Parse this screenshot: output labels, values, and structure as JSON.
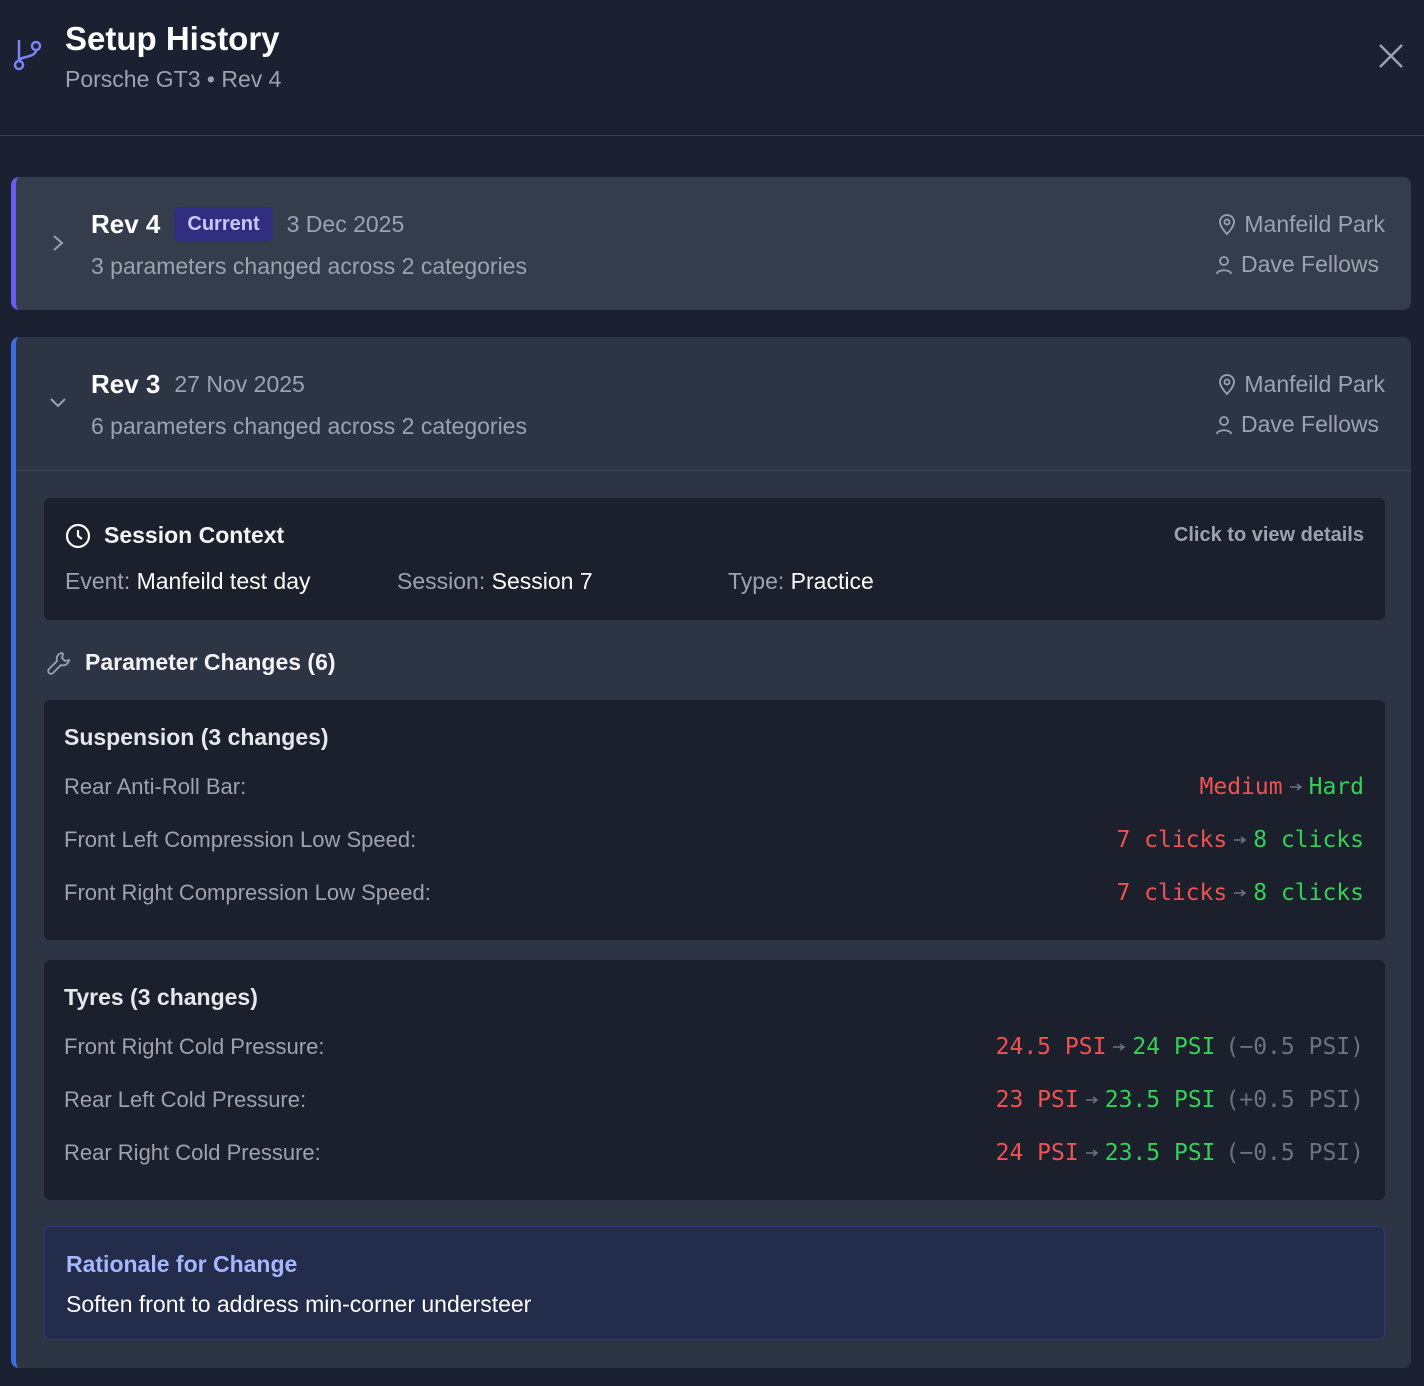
{
  "header": {
    "title": "Setup History",
    "subtitle": "Porsche GT3 • Rev 4"
  },
  "revisions": [
    {
      "rev": "Rev 4",
      "badge": "Current",
      "date": "3 Dec 2025",
      "summary": "3 parameters changed across 2 categories",
      "location": "Manfeild Park",
      "author": "Dave Fellows"
    },
    {
      "rev": "Rev 3",
      "date": "27 Nov 2025",
      "summary": "6 parameters changed across 2 categories",
      "location": "Manfeild Park",
      "author": "Dave Fellows",
      "session": {
        "title": "Session Context",
        "link": "Click to view details",
        "fields": [
          {
            "label": "Event:",
            "value": "Manfeild test day"
          },
          {
            "label": "Session:",
            "value": "Session 7"
          },
          {
            "label": "Type:",
            "value": "Practice"
          }
        ]
      },
      "changes_title": "Parameter Changes (6)",
      "groups": [
        {
          "title": "Suspension (3 changes)",
          "items": [
            {
              "name": "Rear Anti-Roll Bar:",
              "from": "Medium",
              "to": "Hard"
            },
            {
              "name": "Front Left Compression Low Speed:",
              "from": "7 clicks",
              "to": "8 clicks"
            },
            {
              "name": "Front Right Compression Low Speed:",
              "from": "7 clicks",
              "to": "8 clicks"
            }
          ]
        },
        {
          "title": "Tyres (3 changes)",
          "items": [
            {
              "name": "Front Right Cold Pressure:",
              "from": "24.5 PSI",
              "to": "24 PSI",
              "delta": "(−0.5 PSI)"
            },
            {
              "name": "Rear Left Cold Pressure:",
              "from": "23 PSI",
              "to": "23.5 PSI",
              "delta": "(+0.5 PSI)"
            },
            {
              "name": "Rear Right Cold Pressure:",
              "from": "24 PSI",
              "to": "23.5 PSI",
              "delta": "(−0.5 PSI)"
            }
          ]
        }
      ],
      "rationale": {
        "title": "Rationale for Change",
        "text": "Soften front to address min-corner understeer"
      }
    }
  ]
}
